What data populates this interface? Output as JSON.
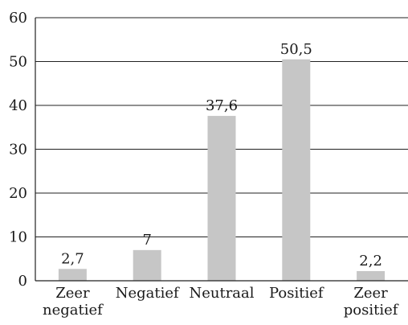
{
  "chart_data": {
    "type": "bar",
    "categories": [
      [
        "Zeer",
        "negatief"
      ],
      [
        "Negatief"
      ],
      [
        "Neutraal"
      ],
      [
        "Positief"
      ],
      [
        "Zeer",
        "positief"
      ]
    ],
    "values": [
      2.7,
      7,
      37.6,
      50.5,
      2.2
    ],
    "data_labels": [
      "2,7",
      "7",
      "37,6",
      "50,5",
      "2,2"
    ],
    "y_ticks": [
      "0",
      "10",
      "20",
      "30",
      "40",
      "50",
      "60"
    ],
    "ylim": [
      0,
      60
    ],
    "title": "",
    "xlabel": "",
    "ylabel": "",
    "grid": true,
    "bar_color": "#c6c6c6"
  }
}
